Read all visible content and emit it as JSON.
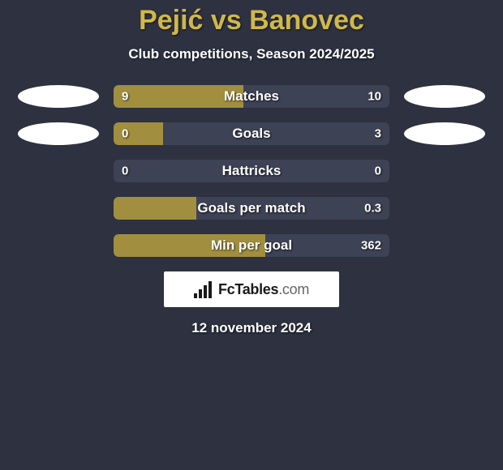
{
  "title": "Pejić vs Banovec",
  "subtitle": "Club competitions, Season 2024/2025",
  "date": "12 november 2024",
  "logo": {
    "brand": "FcTables",
    "suffix": ".com"
  },
  "colors": {
    "background": "#2d3140",
    "accent": "#d0b84a",
    "bar_track": "#3d4254",
    "bar_fill": "#a18f3f",
    "text": "#ffffff",
    "ellipse": "#ffffff"
  },
  "rows": [
    {
      "label": "Matches",
      "left": "9",
      "right": "10",
      "fill_percent": 47,
      "show_left_ellipse": true,
      "show_right_ellipse": true
    },
    {
      "label": "Goals",
      "left": "0",
      "right": "3",
      "fill_percent": 18,
      "show_left_ellipse": true,
      "show_right_ellipse": true
    },
    {
      "label": "Hattricks",
      "left": "0",
      "right": "0",
      "fill_percent": 0,
      "show_left_ellipse": false,
      "show_right_ellipse": false
    },
    {
      "label": "Goals per match",
      "left": "",
      "right": "0.3",
      "fill_percent": 30,
      "show_left_ellipse": false,
      "show_right_ellipse": false
    },
    {
      "label": "Min per goal",
      "left": "",
      "right": "362",
      "fill_percent": 55,
      "show_left_ellipse": false,
      "show_right_ellipse": false
    }
  ]
}
